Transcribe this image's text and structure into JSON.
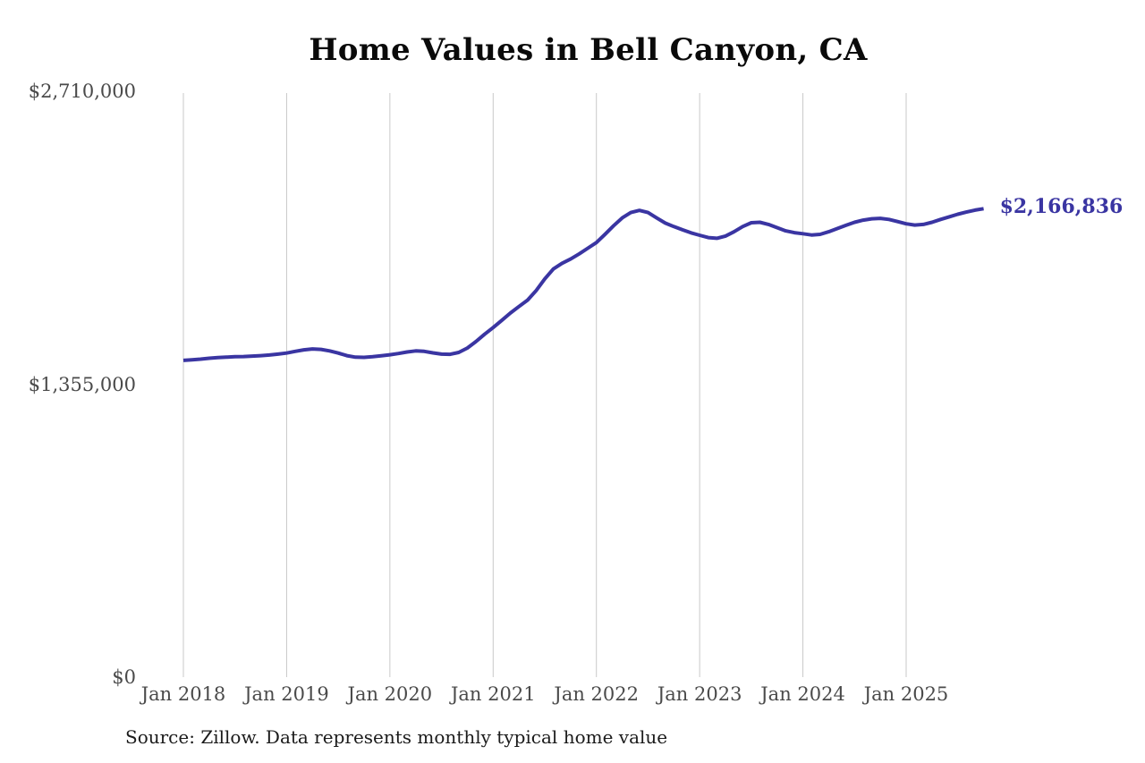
{
  "page": {
    "background_color": "#ffffff"
  },
  "chart_data": {
    "type": "line",
    "title": "Home Values in Bell Canyon, CA",
    "source_note": "Source: Zillow. Data represents monthly typical home value",
    "unit": "USD",
    "line_color": "#3a35a2",
    "gridline_color": "#c9c9c9",
    "axis_label_color": "#4a4a4a",
    "title_color": "#0a0a0a",
    "ylim": [
      0,
      2710000
    ],
    "grid": "vertical-only",
    "legend": "none",
    "latest_value": 2166836,
    "latest_value_label": "$2,166,836",
    "y_ticks": [
      {
        "label": "$2,710,000",
        "value": 2710000
      },
      {
        "label": "$1,355,000",
        "value": 1355000
      },
      {
        "label": "$0",
        "value": 0
      }
    ],
    "x_ticks": [
      {
        "label": "Jan 2018",
        "month_index": 0
      },
      {
        "label": "Jan 2019",
        "month_index": 12
      },
      {
        "label": "Jan 2020",
        "month_index": 24
      },
      {
        "label": "Jan 2021",
        "month_index": 36
      },
      {
        "label": "Jan 2022",
        "month_index": 48
      },
      {
        "label": "Jan 2023",
        "month_index": 60
      },
      {
        "label": "Jan 2024",
        "month_index": 72
      },
      {
        "label": "Jan 2025",
        "month_index": 84
      }
    ],
    "x_range": [
      "Jan 2018",
      "Oct 2025"
    ],
    "series": [
      {
        "name": "Monthly typical home value",
        "start_month": "2018-01",
        "interval": "monthly",
        "values": [
          1465000,
          1468000,
          1471000,
          1475000,
          1478000,
          1480000,
          1482000,
          1483000,
          1485000,
          1487000,
          1490000,
          1494000,
          1499000,
          1507000,
          1514000,
          1518000,
          1516000,
          1509000,
          1499000,
          1487000,
          1480000,
          1479000,
          1482000,
          1486000,
          1491000,
          1497000,
          1504000,
          1509000,
          1507000,
          1500000,
          1494000,
          1493000,
          1502000,
          1522000,
          1552000,
          1586000,
          1617000,
          1650000,
          1684000,
          1714000,
          1744000,
          1788000,
          1842000,
          1888000,
          1914000,
          1934000,
          1958000,
          1984000,
          2010000,
          2048000,
          2088000,
          2124000,
          2149000,
          2159000,
          2149000,
          2124000,
          2100000,
          2084000,
          2069000,
          2055000,
          2044000,
          2033000,
          2030000,
          2040000,
          2060000,
          2084000,
          2102000,
          2104000,
          2094000,
          2079000,
          2064000,
          2056000,
          2051000,
          2045000,
          2048000,
          2060000,
          2075000,
          2090000,
          2104000,
          2114000,
          2120000,
          2122000,
          2117000,
          2107000,
          2097000,
          2091000,
          2094000,
          2104000,
          2117000,
          2129000,
          2141000,
          2151000,
          2160000,
          2166836
        ]
      }
    ]
  }
}
